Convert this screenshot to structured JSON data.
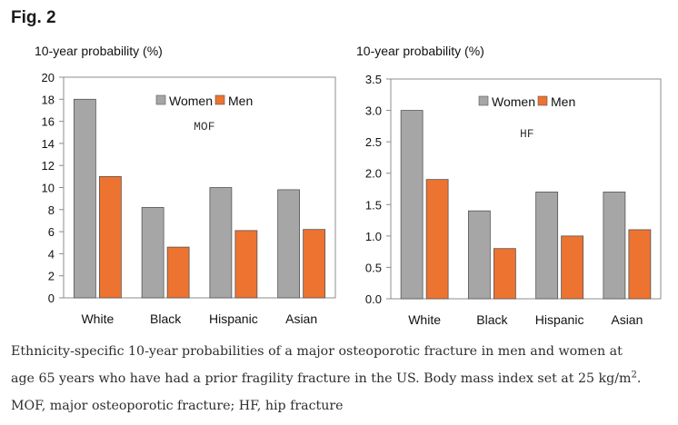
{
  "figure_label": "Fig. 2",
  "chart_data": [
    {
      "type": "bar",
      "ylabel": "10-year probability (%)",
      "annotation": "MOF",
      "categories": [
        "White",
        "Black",
        "Hispanic",
        "Asian"
      ],
      "series": [
        {
          "name": "Women",
          "color": "#a6a6a6",
          "values": [
            18.0,
            8.2,
            10.0,
            9.8
          ]
        },
        {
          "name": "Men",
          "color": "#ed7331",
          "values": [
            11.0,
            4.6,
            6.1,
            6.2
          ]
        }
      ],
      "ylim": [
        0,
        20
      ],
      "yticks": [
        "0",
        "2",
        "4",
        "6",
        "8",
        "10",
        "12",
        "14",
        "16",
        "18",
        "20"
      ],
      "grid": false,
      "legend": "top-center"
    },
    {
      "type": "bar",
      "ylabel": "10-year probability (%)",
      "annotation": "HF",
      "categories": [
        "White",
        "Black",
        "Hispanic",
        "Asian"
      ],
      "series": [
        {
          "name": "Women",
          "color": "#a6a6a6",
          "values": [
            3.0,
            1.4,
            1.7,
            1.7
          ]
        },
        {
          "name": "Men",
          "color": "#ed7331",
          "values": [
            1.9,
            0.8,
            1.0,
            1.1
          ]
        }
      ],
      "ylim": [
        0,
        3.5
      ],
      "yticks": [
        "0.0",
        "0.5",
        "1.0",
        "1.5",
        "2.0",
        "2.5",
        "3.0",
        "3.5"
      ],
      "grid": false,
      "legend": "top-center"
    }
  ],
  "caption": {
    "line1": "Ethnicity-specific 10-year probabilities of a major osteoporotic fracture in men and women at",
    "line2_main": "age 65 years who have had a prior fragility fracture in the US. Body mass index set at 25 kg/m",
    "line2_sup": "2",
    "line2_end": ".",
    "line3": "MOF, major osteoporotic fracture; HF, hip fracture"
  }
}
